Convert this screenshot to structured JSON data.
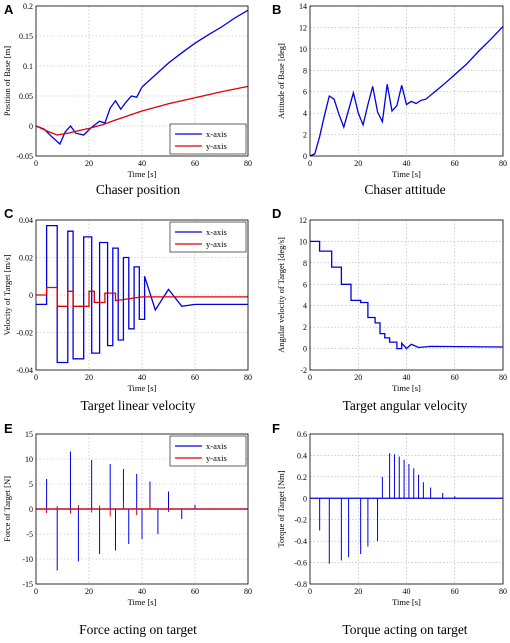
{
  "chart_data": [
    {
      "type": "line",
      "panel_label": "A",
      "caption": "Chaser position",
      "xlabel": "Time [s]",
      "ylabel": "Position of Base [m]",
      "xlim": [
        0,
        80
      ],
      "ylim": [
        -0.05,
        0.2
      ],
      "xticks": [
        "0",
        "20",
        "40",
        "60",
        "80"
      ],
      "yticks": [
        "-0.05",
        "0",
        "0.05",
        "0.1",
        "0.15",
        "0.2"
      ],
      "grid": true,
      "legend": {
        "position": "bottom-right",
        "entries": [
          "x-axis",
          "y-axis"
        ]
      },
      "series": [
        {
          "name": "x-axis",
          "color": "#0000e0",
          "x": [
            0,
            3,
            6,
            9,
            11,
            13,
            15,
            18,
            21,
            24,
            26,
            28,
            30,
            32,
            34,
            36,
            38,
            40,
            45,
            50,
            55,
            60,
            65,
            70,
            75,
            80
          ],
          "y": [
            0,
            -0.005,
            -0.018,
            -0.03,
            -0.01,
            0.0,
            -0.012,
            -0.015,
            -0.002,
            0.008,
            0.005,
            0.03,
            0.042,
            0.028,
            0.04,
            0.05,
            0.048,
            0.065,
            0.085,
            0.105,
            0.122,
            0.138,
            0.152,
            0.165,
            0.18,
            0.193
          ]
        },
        {
          "name": "y-axis",
          "color": "#e00000",
          "x": [
            0,
            5,
            8,
            12,
            16,
            20,
            25,
            30,
            40,
            50,
            60,
            70,
            80
          ],
          "y": [
            0,
            -0.01,
            -0.015,
            -0.012,
            -0.008,
            -0.004,
            0.002,
            0.01,
            0.025,
            0.037,
            0.047,
            0.057,
            0.066
          ]
        }
      ]
    },
    {
      "type": "line",
      "panel_label": "B",
      "caption": "Chaser attitude",
      "xlabel": "Time [s]",
      "ylabel": "Attitude of Base [deg]",
      "xlim": [
        0,
        80
      ],
      "ylim": [
        0,
        14
      ],
      "xticks": [
        "0",
        "20",
        "40",
        "60",
        "80"
      ],
      "yticks": [
        "0",
        "2",
        "4",
        "6",
        "8",
        "10",
        "12",
        "14"
      ],
      "grid": true,
      "series": [
        {
          "name": "",
          "color": "#0000e0",
          "x": [
            0,
            2,
            4,
            6,
            8,
            10,
            12,
            14,
            16,
            18,
            20,
            22,
            24,
            26,
            28,
            30,
            32,
            34,
            36,
            38,
            40,
            42,
            44,
            46,
            48,
            55,
            60,
            65,
            70,
            75,
            80
          ],
          "y": [
            0,
            0.2,
            1.8,
            3.8,
            5.6,
            5.3,
            3.9,
            2.7,
            4.3,
            5.9,
            4.0,
            2.9,
            4.8,
            6.5,
            4.1,
            3.2,
            6.7,
            4.2,
            4.7,
            6.6,
            4.8,
            5.1,
            4.9,
            5.2,
            5.3,
            6.6,
            7.6,
            8.6,
            9.8,
            10.9,
            12.1
          ]
        }
      ]
    },
    {
      "type": "line",
      "panel_label": "C",
      "caption": "Target linear velocity",
      "xlabel": "Time [s]",
      "ylabel": "Velocity of Target [m/s]",
      "xlim": [
        0,
        80
      ],
      "ylim": [
        -0.04,
        0.04
      ],
      "xticks": [
        "0",
        "20",
        "40",
        "60",
        "80"
      ],
      "yticks": [
        "-0.04",
        "-0.02",
        "0",
        "0.02",
        "0.04"
      ],
      "grid": true,
      "legend": {
        "position": "top-right",
        "entries": [
          "x-axis",
          "y-axis"
        ]
      },
      "series": [
        {
          "name": "x-axis",
          "color": "#0000e0",
          "x": [
            0,
            4,
            4,
            8,
            8,
            12,
            12,
            14,
            14,
            18,
            18,
            21,
            21,
            24,
            24,
            27,
            27,
            29,
            29,
            31,
            31,
            33,
            33,
            35,
            35,
            37,
            37,
            39,
            39,
            41,
            41,
            45,
            50,
            55,
            60,
            80
          ],
          "y": [
            -0.005,
            -0.005,
            0.037,
            0.037,
            -0.036,
            -0.036,
            0.034,
            0.034,
            -0.034,
            -0.034,
            0.031,
            0.031,
            -0.031,
            -0.031,
            0.028,
            0.028,
            -0.027,
            -0.027,
            0.025,
            0.025,
            -0.024,
            -0.024,
            0.02,
            0.02,
            -0.018,
            -0.018,
            0.015,
            0.015,
            -0.013,
            -0.013,
            0.01,
            -0.008,
            0.003,
            -0.006,
            -0.005,
            -0.005
          ]
        },
        {
          "name": "y-axis",
          "color": "#e00000",
          "x": [
            0,
            4,
            4,
            8,
            8,
            12,
            12,
            14,
            14,
            20,
            20,
            22,
            22,
            26,
            26,
            30,
            30,
            40,
            50,
            80
          ],
          "y": [
            0.0,
            0.0,
            0.004,
            0.004,
            -0.006,
            -0.006,
            0.002,
            0.002,
            -0.006,
            -0.006,
            0.002,
            0.002,
            -0.004,
            -0.004,
            0.001,
            0.001,
            -0.003,
            -0.001,
            -0.001,
            -0.001
          ]
        }
      ]
    },
    {
      "type": "line",
      "panel_label": "D",
      "caption": "Target angular velocity",
      "xlabel": "Time [s]",
      "ylabel": "Angular velocity of Target [deg/s]",
      "xlim": [
        0,
        80
      ],
      "ylim": [
        -2,
        12
      ],
      "xticks": [
        "0",
        "20",
        "40",
        "60",
        "80"
      ],
      "yticks": [
        "-2",
        "0",
        "2",
        "4",
        "6",
        "8",
        "10",
        "12"
      ],
      "grid": true,
      "series": [
        {
          "name": "",
          "color": "#0000e0",
          "x": [
            0,
            4,
            4,
            9,
            9,
            13,
            13,
            17,
            17,
            21,
            21,
            24,
            24,
            27,
            27,
            29,
            29,
            31,
            31,
            33,
            33,
            36,
            36,
            38,
            38,
            40,
            42,
            45,
            50,
            80
          ],
          "y": [
            10,
            10,
            9.1,
            9.1,
            7.6,
            7.6,
            6.0,
            6.0,
            4.5,
            4.5,
            4.3,
            4.3,
            2.9,
            2.9,
            2.4,
            2.4,
            1.4,
            1.4,
            1.0,
            1.0,
            0.6,
            0.6,
            0.0,
            0.0,
            0.5,
            0.0,
            0.4,
            0.1,
            0.2,
            0.15
          ]
        }
      ]
    },
    {
      "type": "line",
      "panel_label": "E",
      "caption": "Force acting on target",
      "xlabel": "Time [s]",
      "ylabel": "Force of Target [N]",
      "xlim": [
        0,
        80
      ],
      "ylim": [
        -15,
        15
      ],
      "xticks": [
        "0",
        "20",
        "40",
        "60",
        "80"
      ],
      "yticks": [
        "-15",
        "-10",
        "-5",
        "0",
        "5",
        "10",
        "15"
      ],
      "grid": true,
      "legend": {
        "position": "top-right",
        "entries": [
          "x-axis",
          "y-axis"
        ]
      },
      "series": [
        {
          "name": "x-axis",
          "color": "#0000e0",
          "spikes": [
            [
              4,
              6
            ],
            [
              8,
              -12.3
            ],
            [
              13,
              11.5
            ],
            [
              16,
              -10.5
            ],
            [
              21,
              9.8
            ],
            [
              24,
              -9.0
            ],
            [
              28,
              9.0
            ],
            [
              30,
              -8.3
            ],
            [
              33,
              8.0
            ],
            [
              35,
              -7.0
            ],
            [
              38,
              7.0
            ],
            [
              40,
              -6.0
            ],
            [
              43,
              5.5
            ],
            [
              46,
              -5.0
            ],
            [
              50,
              3.5
            ],
            [
              55,
              -2.0
            ],
            [
              60,
              0.8
            ]
          ]
        },
        {
          "name": "y-axis",
          "color": "#e00000",
          "spikes": [
            [
              4,
              -0.8
            ],
            [
              8,
              0.6
            ],
            [
              13,
              -0.9
            ],
            [
              16,
              0.8
            ],
            [
              21,
              -0.7
            ],
            [
              24,
              0.7
            ],
            [
              28,
              -1.5
            ],
            [
              33,
              1.4
            ],
            [
              38,
              -1.2
            ],
            [
              43,
              1.0
            ],
            [
              50,
              -0.6
            ]
          ]
        }
      ]
    },
    {
      "type": "line",
      "panel_label": "F",
      "caption": "Torque acting on target",
      "xlabel": "Time [s]",
      "ylabel": "Torque of Target [Nm]",
      "xlim": [
        0,
        80
      ],
      "ylim": [
        -0.8,
        0.6
      ],
      "xticks": [
        "0",
        "20",
        "40",
        "60",
        "80"
      ],
      "yticks": [
        "-0.8",
        "-0.6",
        "-0.4",
        "-0.2",
        "0",
        "0.2",
        "0.4",
        "0.6"
      ],
      "grid": true,
      "series": [
        {
          "name": "",
          "color": "#0000e0",
          "spikes": [
            [
              4,
              -0.3
            ],
            [
              8,
              -0.61
            ],
            [
              13,
              -0.58
            ],
            [
              16,
              -0.55
            ],
            [
              21,
              -0.52
            ],
            [
              24,
              -0.45
            ],
            [
              28,
              -0.4
            ],
            [
              30,
              0.2
            ],
            [
              33,
              0.42
            ],
            [
              35,
              0.41
            ],
            [
              37,
              0.39
            ],
            [
              39,
              0.36
            ],
            [
              41,
              0.32
            ],
            [
              43,
              0.28
            ],
            [
              45,
              0.22
            ],
            [
              47,
              0.15
            ],
            [
              50,
              0.1
            ],
            [
              55,
              0.05
            ],
            [
              60,
              0.02
            ]
          ]
        }
      ]
    }
  ]
}
